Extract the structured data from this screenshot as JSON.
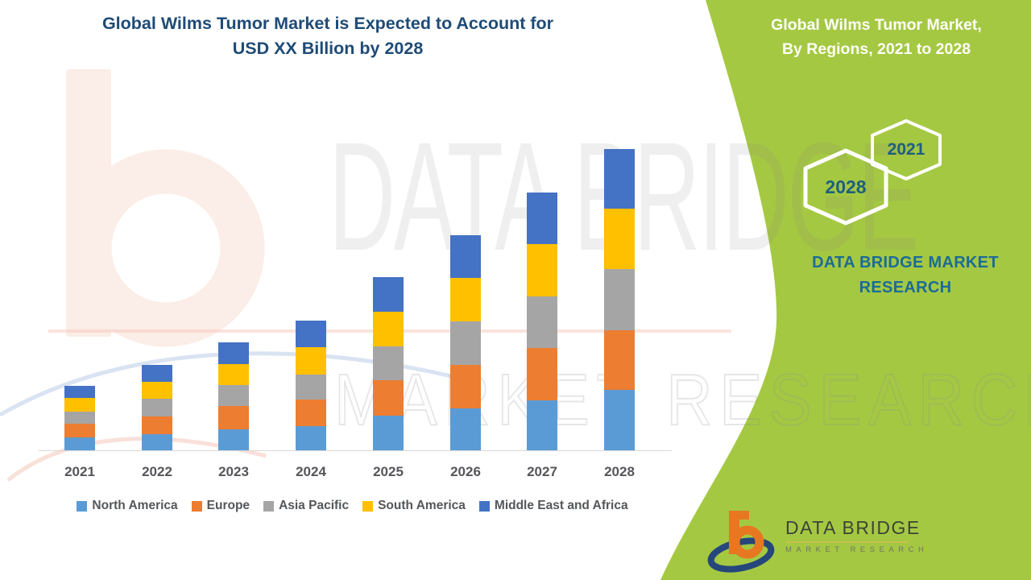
{
  "header": {
    "title_line1": "Global Wilms Tumor Market is Expected to Account for",
    "title_line2": "USD XX Billion by 2028"
  },
  "side_panel": {
    "title_line1": "Global Wilms Tumor Market,",
    "title_line2": "By Regions, 2021 to 2028",
    "hexagon_year_top": "2021",
    "hexagon_year_bottom": "2028",
    "brand_line1": "DATA BRIDGE MARKET",
    "brand_line2": "RESEARCH"
  },
  "watermark": {
    "big_text": "DATA BRIDGE",
    "outline_text": "MARKET RESEARCH"
  },
  "logo": {
    "name": "DATA BRIDGE",
    "subtitle": "MARKET RESEARCH"
  },
  "colors": {
    "green_panel": "#A5C843",
    "navy_title": "#1F4B76",
    "teal_brand": "#1B6C95",
    "hex_year_text": "#1E5F7F",
    "axis_text": "#55565A",
    "legend_text": "#54575A",
    "axis_line": "#D9D9D9",
    "hexagon_stroke": "#FFFFFF"
  },
  "chart_data": {
    "type": "bar",
    "stacked": true,
    "title": "Global Wilms Tumor Market is Expected to Account for USD XX Billion by 2028",
    "xlabel": "",
    "ylabel": "",
    "y_axis_labels_visible": false,
    "gridlines": false,
    "legend_position": "bottom",
    "categories": [
      "2021",
      "2022",
      "2023",
      "2024",
      "2025",
      "2026",
      "2027",
      "2028"
    ],
    "series": [
      {
        "name": "North America",
        "color": "#5B9BD5",
        "values": [
          16,
          20,
          26,
          30,
          43,
          52,
          62,
          75
        ]
      },
      {
        "name": "Europe",
        "color": "#ED7D31",
        "values": [
          17,
          22,
          29,
          33,
          44,
          54,
          65,
          74
        ]
      },
      {
        "name": "Asia Pacific",
        "color": "#A5A5A5",
        "values": [
          15,
          22,
          26,
          31,
          42,
          54,
          64,
          76
        ]
      },
      {
        "name": "South America",
        "color": "#FFC000",
        "values": [
          17,
          21,
          26,
          34,
          43,
          54,
          65,
          75
        ]
      },
      {
        "name": "Middle East and Africa",
        "color": "#4472C4",
        "values": [
          15,
          21,
          27,
          33,
          43,
          53,
          64,
          74
        ]
      }
    ],
    "stack_totals": [
      80,
      106,
      134,
      161,
      215,
      267,
      320,
      374
    ],
    "value_note": "XX (values not labeled in chart; series values are relative units read from bar heights)"
  }
}
